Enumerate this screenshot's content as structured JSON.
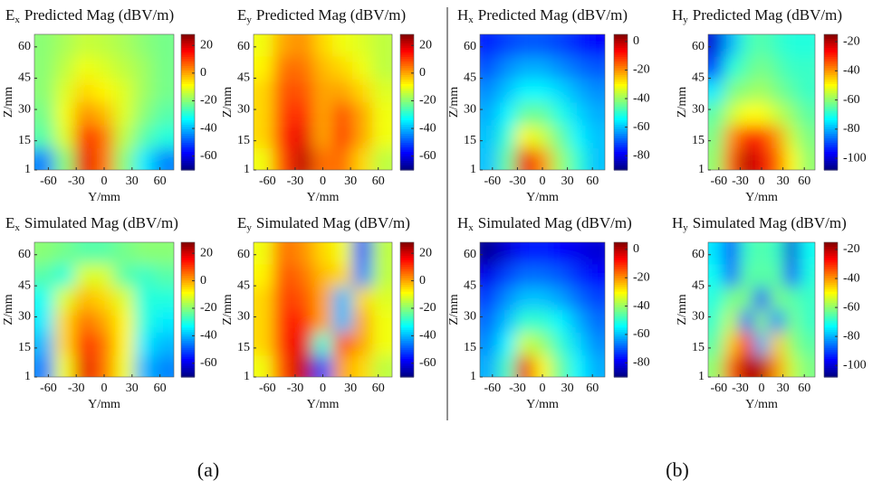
{
  "chart_data": [
    {
      "type": "heatmap",
      "title_symbol": "E",
      "title_subscript": "x",
      "title": "Predicted Mag (dBV/m)",
      "xlabel": "Y/mm",
      "ylabel": "Z/mm",
      "colormap": "jet",
      "x": [
        -64,
        -43,
        -21,
        0,
        21,
        43,
        64
      ],
      "y": [
        6,
        17,
        28,
        39,
        50,
        61
      ],
      "z": [
        [
          -45,
          -20,
          18,
          5,
          -20,
          -35,
          -45
        ],
        [
          -25,
          -12,
          12,
          5,
          -15,
          -25,
          -30
        ],
        [
          -22,
          -10,
          2,
          -2,
          -12,
          -20,
          -25
        ],
        [
          -20,
          -12,
          -5,
          -8,
          -12,
          -18,
          -22
        ],
        [
          -20,
          -15,
          -10,
          -12,
          -15,
          -18,
          -22
        ],
        [
          -20,
          -17,
          -14,
          -15,
          -17,
          -20,
          -22
        ]
      ],
      "xlim": [
        -75,
        75
      ],
      "ylim": [
        1,
        66
      ],
      "xticks": [
        -60,
        -30,
        0,
        30,
        60
      ],
      "yticks": [
        1,
        15,
        30,
        45,
        60
      ],
      "clim": [
        -70,
        28
      ],
      "cticks": [
        20,
        0,
        -20,
        -40,
        -60
      ]
    },
    {
      "type": "heatmap",
      "title_symbol": "E",
      "title_subscript": "y",
      "title": "Predicted Mag (dBV/m)",
      "xlabel": "Y/mm",
      "ylabel": "Z/mm",
      "colormap": "jet",
      "x": [
        -64,
        -43,
        -21,
        0,
        21,
        43,
        64
      ],
      "y": [
        6,
        17,
        28,
        39,
        50,
        61
      ],
      "z": [
        [
          -10,
          10,
          22,
          5,
          5,
          -5,
          -15
        ],
        [
          -5,
          12,
          18,
          0,
          10,
          0,
          -10
        ],
        [
          -5,
          10,
          12,
          0,
          8,
          0,
          -10
        ],
        [
          -5,
          8,
          8,
          0,
          0,
          -5,
          -12
        ],
        [
          -8,
          5,
          5,
          -2,
          -5,
          -10,
          -15
        ],
        [
          -10,
          0,
          2,
          -5,
          -10,
          -12,
          -15
        ]
      ],
      "xlim": [
        -75,
        75
      ],
      "ylim": [
        1,
        66
      ],
      "xticks": [
        -60,
        -30,
        0,
        30,
        60
      ],
      "yticks": [
        1,
        15,
        30,
        45,
        60
      ],
      "clim": [
        -70,
        28
      ],
      "cticks": [
        20,
        0,
        -20,
        -40,
        -60
      ]
    },
    {
      "type": "heatmap",
      "title_symbol": "H",
      "title_subscript": "x",
      "title": "Predicted Mag (dBV/m)",
      "xlabel": "Y/mm",
      "ylabel": "Z/mm",
      "colormap": "jet",
      "x": [
        -64,
        -43,
        -21,
        0,
        21,
        43,
        64
      ],
      "y": [
        6,
        17,
        28,
        39,
        50,
        61
      ],
      "z": [
        [
          -60,
          -45,
          -5,
          -20,
          -40,
          -50,
          -60
        ],
        [
          -60,
          -50,
          -30,
          -35,
          -45,
          -55,
          -60
        ],
        [
          -62,
          -55,
          -45,
          -45,
          -52,
          -58,
          -62
        ],
        [
          -65,
          -60,
          -55,
          -55,
          -58,
          -62,
          -65
        ],
        [
          -70,
          -65,
          -62,
          -62,
          -65,
          -68,
          -70
        ],
        [
          -75,
          -72,
          -70,
          -70,
          -72,
          -75,
          -78
        ]
      ],
      "xlim": [
        -75,
        75
      ],
      "ylim": [
        1,
        66
      ],
      "xticks": [
        -60,
        -30,
        0,
        30,
        60
      ],
      "yticks": [
        1,
        15,
        30,
        45,
        60
      ],
      "clim": [
        -90,
        5
      ],
      "cticks": [
        0,
        -20,
        -40,
        -60,
        -80
      ]
    },
    {
      "type": "heatmap",
      "title_symbol": "H",
      "title_subscript": "y",
      "title": "Predicted Mag (dBV/m)",
      "xlabel": "Y/mm",
      "ylabel": "Z/mm",
      "colormap": "jet",
      "x": [
        -64,
        -43,
        -21,
        0,
        21,
        43,
        64
      ],
      "y": [
        6,
        17,
        28,
        39,
        50,
        61
      ],
      "z": [
        [
          -60,
          -35,
          -20,
          -25,
          -35,
          -50,
          -60
        ],
        [
          -62,
          -40,
          -30,
          -30,
          -40,
          -55,
          -62
        ],
        [
          -65,
          -55,
          -50,
          -50,
          -55,
          -60,
          -65
        ],
        [
          -75,
          -62,
          -60,
          -58,
          -62,
          -65,
          -68
        ],
        [
          -90,
          -70,
          -65,
          -62,
          -65,
          -68,
          -68
        ],
        [
          -100,
          -80,
          -68,
          -65,
          -68,
          -70,
          -70
        ]
      ],
      "xlim": [
        -75,
        75
      ],
      "ylim": [
        1,
        66
      ],
      "xticks": [
        -60,
        -30,
        0,
        30,
        60
      ],
      "yticks": [
        1,
        15,
        30,
        45,
        60
      ],
      "clim": [
        -108,
        -15
      ],
      "cticks": [
        -20,
        -40,
        -60,
        -80,
        -100
      ]
    },
    {
      "type": "heatmap",
      "title_symbol": "E",
      "title_subscript": "x",
      "title": "Simulated Mag (dBV/m)",
      "xlabel": "Y/mm",
      "ylabel": "Z/mm",
      "colormap": "jet",
      "x": [
        -64,
        -43,
        -21,
        0,
        21,
        43,
        64
      ],
      "y": [
        6,
        17,
        28,
        39,
        50,
        61
      ],
      "z": [
        [
          -45,
          -10,
          18,
          5,
          -10,
          -40,
          -45
        ],
        [
          -40,
          -5,
          12,
          5,
          -8,
          -35,
          -40
        ],
        [
          -35,
          -5,
          5,
          0,
          -8,
          -30,
          -35
        ],
        [
          -32,
          -12,
          -2,
          -5,
          -12,
          -30,
          -30
        ],
        [
          -25,
          -30,
          -12,
          -12,
          -25,
          -28,
          -25
        ],
        [
          -20,
          -22,
          -25,
          -25,
          -22,
          -20,
          -20
        ]
      ],
      "xlim": [
        -75,
        75
      ],
      "ylim": [
        1,
        66
      ],
      "xticks": [
        -60,
        -30,
        0,
        30,
        60
      ],
      "yticks": [
        1,
        15,
        30,
        45,
        60
      ],
      "clim": [
        -70,
        28
      ],
      "cticks": [
        20,
        0,
        -20,
        -40,
        -60
      ]
    },
    {
      "type": "heatmap",
      "title_symbol": "E",
      "title_subscript": "y",
      "title": "Simulated Mag (dBV/m)",
      "xlabel": "Y/mm",
      "ylabel": "Z/mm",
      "colormap": "jet",
      "x": [
        -64,
        -43,
        -21,
        0,
        21,
        43,
        64
      ],
      "y": [
        6,
        17,
        28,
        39,
        50,
        61
      ],
      "z": [
        [
          -10,
          10,
          22,
          -50,
          0,
          -5,
          -15
        ],
        [
          -5,
          12,
          18,
          -30,
          8,
          0,
          -10
        ],
        [
          -5,
          12,
          12,
          0,
          -40,
          0,
          -10
        ],
        [
          -5,
          10,
          8,
          0,
          -40,
          -5,
          -12
        ],
        [
          -8,
          8,
          5,
          -2,
          -5,
          -45,
          -15
        ],
        [
          -10,
          5,
          2,
          -5,
          -10,
          -50,
          -15
        ]
      ],
      "xlim": [
        -75,
        75
      ],
      "ylim": [
        1,
        66
      ],
      "xticks": [
        -60,
        -30,
        0,
        30,
        60
      ],
      "yticks": [
        1,
        15,
        30,
        45,
        60
      ],
      "clim": [
        -70,
        28
      ],
      "cticks": [
        20,
        0,
        -20,
        -40,
        -60
      ]
    },
    {
      "type": "heatmap",
      "title_symbol": "H",
      "title_subscript": "x",
      "title": "Simulated Mag (dBV/m)",
      "xlabel": "Y/mm",
      "ylabel": "Z/mm",
      "colormap": "jet",
      "x": [
        -64,
        -43,
        -21,
        0,
        21,
        43,
        64
      ],
      "y": [
        6,
        17,
        28,
        39,
        50,
        61
      ],
      "z": [
        [
          -62,
          -48,
          -5,
          -30,
          -45,
          -55,
          -62
        ],
        [
          -65,
          -55,
          -35,
          -40,
          -50,
          -58,
          -65
        ],
        [
          -68,
          -60,
          -50,
          -50,
          -55,
          -62,
          -68
        ],
        [
          -72,
          -65,
          -60,
          -60,
          -63,
          -68,
          -72
        ],
        [
          -80,
          -72,
          -68,
          -68,
          -70,
          -74,
          -78
        ],
        [
          -88,
          -82,
          -76,
          -75,
          -78,
          -80,
          -82
        ]
      ],
      "xlim": [
        -75,
        75
      ],
      "ylim": [
        1,
        66
      ],
      "xticks": [
        -60,
        -30,
        0,
        30,
        60
      ],
      "yticks": [
        1,
        15,
        30,
        45,
        60
      ],
      "clim": [
        -90,
        5
      ],
      "cticks": [
        0,
        -20,
        -40,
        -60,
        -80
      ]
    },
    {
      "type": "heatmap",
      "title_symbol": "H",
      "title_subscript": "y",
      "title": "Simulated Mag (dBV/m)",
      "xlabel": "Y/mm",
      "ylabel": "Z/mm",
      "colormap": "jet",
      "x": [
        -64,
        -43,
        -21,
        0,
        21,
        43,
        64
      ],
      "y": [
        6,
        17,
        28,
        39,
        50,
        61
      ],
      "z": [
        [
          -60,
          -35,
          -20,
          -20,
          -40,
          -55,
          -62
        ],
        [
          -65,
          -45,
          -28,
          -80,
          -45,
          -60,
          -65
        ],
        [
          -68,
          -55,
          -90,
          -60,
          -85,
          -62,
          -68
        ],
        [
          -70,
          -62,
          -62,
          -95,
          -62,
          -65,
          -68
        ],
        [
          -72,
          -90,
          -65,
          -65,
          -65,
          -95,
          -70
        ],
        [
          -75,
          -95,
          -68,
          -65,
          -68,
          -100,
          -72
        ]
      ],
      "xlim": [
        -75,
        75
      ],
      "ylim": [
        1,
        66
      ],
      "xticks": [
        -60,
        -30,
        0,
        30,
        60
      ],
      "yticks": [
        1,
        15,
        30,
        45,
        60
      ],
      "clim": [
        -108,
        -15
      ],
      "cticks": [
        -20,
        -40,
        -60,
        -80,
        -100
      ]
    }
  ],
  "captions": [
    "(a)",
    "(b)"
  ]
}
